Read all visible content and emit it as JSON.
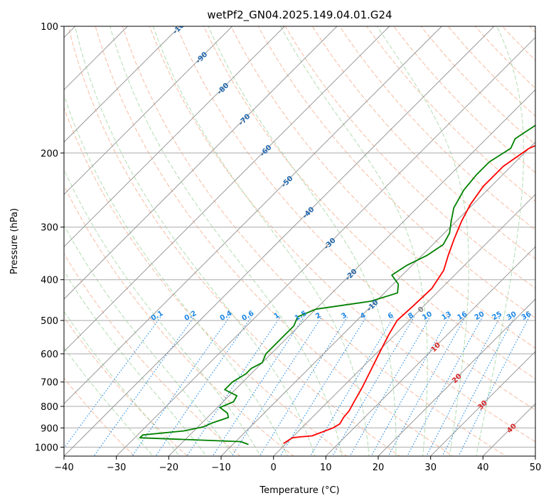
{
  "chart_data": {
    "type": "line",
    "title": "wetPf2_GN04.2025.149.04.01.G24",
    "xlabel": "Temperature (°C)",
    "ylabel": "Pressure (hPa)",
    "xlim": [
      -40,
      50
    ],
    "ylim": [
      1050,
      100
    ],
    "y_scale": "log",
    "x_ticks": [
      -40,
      -30,
      -20,
      -10,
      0,
      10,
      20,
      30,
      40,
      50
    ],
    "x_tick_labels": [
      "−40",
      "−30",
      "−20",
      "−10",
      "0",
      "10",
      "20",
      "30",
      "40",
      "50"
    ],
    "y_ticks": [
      100,
      200,
      300,
      400,
      500,
      600,
      700,
      800,
      900,
      1000
    ],
    "y_tick_labels": [
      "100",
      "200",
      "300",
      "400",
      "500",
      "600",
      "700",
      "800",
      "900",
      "1000"
    ],
    "grid": true,
    "colors": {
      "temperature": "#ff0000",
      "dewpoint": "#008000",
      "dry_adiabat": "#f4a582",
      "moist_adiabat": "#9fd49f",
      "mixing_ratio": "#1e88e5",
      "isotherm": "#999999",
      "isotherm_label": "#2166ac",
      "adiabat_label": "#d62728"
    },
    "series": [
      {
        "key": "temperature",
        "points": [
          [
            -0.5,
            980
          ],
          [
            -0.2,
            965
          ],
          [
            0.1,
            950
          ],
          [
            1.5,
            945
          ],
          [
            3.5,
            940
          ],
          [
            6.0,
            900
          ],
          [
            6.5,
            880
          ],
          [
            6.0,
            850
          ],
          [
            5.8,
            820
          ],
          [
            5.0,
            780
          ],
          [
            3.8,
            720
          ],
          [
            2.0,
            650
          ],
          [
            0.3,
            590
          ],
          [
            -1.2,
            540
          ],
          [
            -2.3,
            500
          ],
          [
            -2.0,
            460
          ],
          [
            -1.8,
            420
          ],
          [
            -3.0,
            380
          ],
          [
            -5.0,
            350
          ],
          [
            -7.0,
            320
          ],
          [
            -9.0,
            290
          ],
          [
            -10.5,
            265
          ],
          [
            -11.5,
            240
          ],
          [
            -11.5,
            215
          ],
          [
            -10.0,
            195
          ],
          [
            -7.5,
            185
          ],
          [
            -4.0,
            170
          ],
          [
            -1.0,
            160
          ],
          [
            2.5,
            145
          ],
          [
            5.5,
            130
          ],
          [
            8.0,
            118
          ],
          [
            10.0,
            110
          ],
          [
            12.5,
            100
          ]
        ]
      },
      {
        "key": "dewpoint",
        "points": [
          [
            -7,
            985
          ],
          [
            -9,
            970
          ],
          [
            -29,
            950
          ],
          [
            -29,
            935
          ],
          [
            -22,
            915
          ],
          [
            -19,
            895
          ],
          [
            -18,
            875
          ],
          [
            -16,
            850
          ],
          [
            -17,
            830
          ],
          [
            -19.5,
            805
          ],
          [
            -18,
            780
          ],
          [
            -18.5,
            755
          ],
          [
            -22,
            730
          ],
          [
            -22,
            700
          ],
          [
            -21,
            670
          ],
          [
            -21,
            650
          ],
          [
            -20,
            630
          ],
          [
            -21,
            600
          ],
          [
            -21,
            575
          ],
          [
            -21,
            545
          ],
          [
            -21,
            515
          ],
          [
            -22,
            490
          ],
          [
            -20,
            470
          ],
          [
            -11,
            450
          ],
          [
            -7.5,
            430
          ],
          [
            -9,
            410
          ],
          [
            -12,
            390
          ],
          [
            -11,
            370
          ],
          [
            -9,
            350
          ],
          [
            -8,
            330
          ],
          [
            -9,
            310
          ],
          [
            -11,
            290
          ],
          [
            -13,
            270
          ],
          [
            -14.5,
            245
          ],
          [
            -15,
            225
          ],
          [
            -15,
            210
          ],
          [
            -13.5,
            195
          ],
          [
            -14.5,
            185
          ],
          [
            -13,
            170
          ],
          [
            -12,
            155
          ],
          [
            -9.5,
            140
          ],
          [
            -5,
            120
          ],
          [
            -1,
            108
          ],
          [
            1.5,
            100
          ]
        ]
      }
    ],
    "isotherm_labels": [
      -100,
      -90,
      -80,
      -70,
      -60,
      -50,
      -40,
      -30,
      -20,
      -10,
      0,
      10,
      20,
      30,
      40
    ],
    "mixing_ratio_labels": [
      "0.1",
      "0.2",
      "0.4",
      "0.6",
      "1",
      "1.5",
      "2",
      "3",
      "4",
      "6",
      "8",
      "10",
      "13",
      "16",
      "20",
      "25",
      "30",
      "36"
    ],
    "mixing_ratio_values": [
      0.1,
      0.2,
      0.4,
      0.6,
      1,
      1.5,
      2,
      3,
      4,
      6,
      8,
      10,
      13,
      16,
      20,
      25,
      30,
      36
    ]
  }
}
